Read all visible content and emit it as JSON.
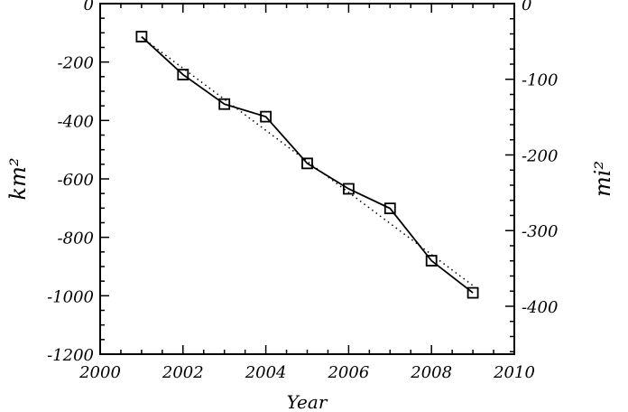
{
  "chart_data": {
    "type": "line",
    "xlabel": "Year",
    "ylabel": "km²",
    "ylabel_right": "mi²",
    "xlim": [
      2000,
      2010
    ],
    "ylim": [
      -1200,
      0
    ],
    "ylim_right_mi2": [
      -463.3,
      0
    ],
    "x_ticks": [
      "2000",
      "2002",
      "2004",
      "2006",
      "2008",
      "2010"
    ],
    "y_ticks": [
      "0",
      "-200",
      "-400",
      "-600",
      "-800",
      "-1000",
      "-1200"
    ],
    "y_right_ticks": [
      "0",
      "-100",
      "-200",
      "-300",
      "-400"
    ],
    "grid": false,
    "series": [
      {
        "style": "solid line with square markers",
        "x": [
          2001,
          2002,
          2003,
          2004,
          2005,
          2006,
          2007,
          2008,
          2009
        ],
        "y": [
          -113,
          -243,
          -344,
          -387,
          -547,
          -634,
          -701,
          -880,
          -990
        ]
      },
      {
        "style": "dotted linear trend",
        "x": [
          2001,
          2009
        ],
        "y": [
          -115,
          -965
        ]
      }
    ]
  }
}
